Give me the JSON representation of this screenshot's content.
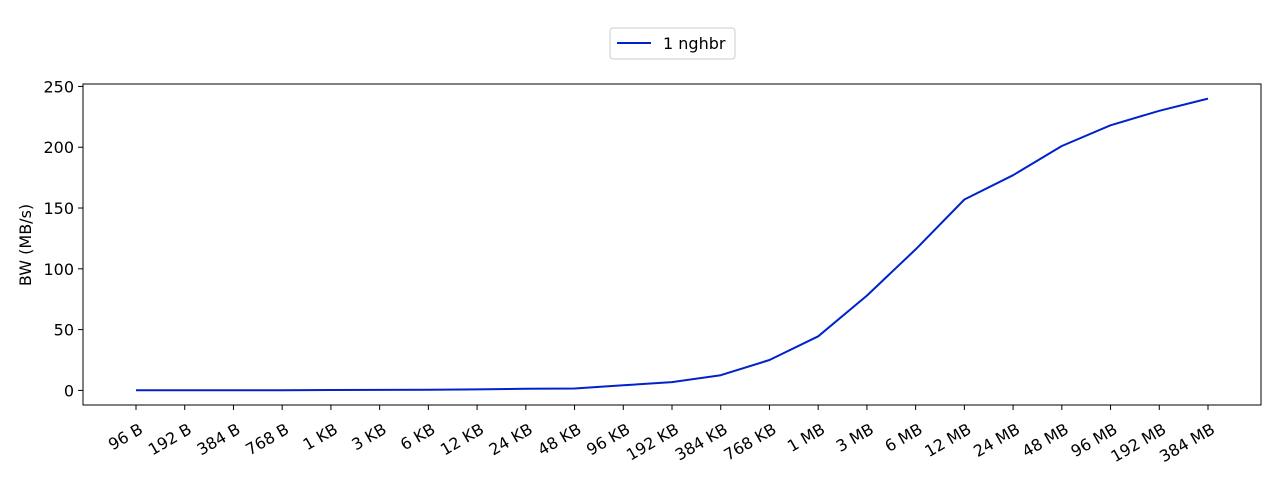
{
  "chart_data": {
    "type": "line",
    "categories": [
      "96 B",
      "192 B",
      "384 B",
      "768 B",
      "1 KB",
      "3 KB",
      "6 KB",
      "12 KB",
      "24 KB",
      "48 KB",
      "96 KB",
      "192 KB",
      "384 KB",
      "768 KB",
      "1 MB",
      "3 MB",
      "6 MB",
      "12 MB",
      "24 MB",
      "48 MB",
      "96 MB",
      "192 MB",
      "384 MB"
    ],
    "series": [
      {
        "name": "1 nghbr",
        "color": "#0022cc",
        "values": [
          0.2,
          0.2,
          0.2,
          0.2,
          0.3,
          0.4,
          0.5,
          0.8,
          1.3,
          1.6,
          4.2,
          6.8,
          12.5,
          25,
          44.5,
          78,
          116,
          157,
          177,
          201,
          218,
          230,
          240
        ]
      }
    ],
    "xlabel": "",
    "ylabel": "BW (MB/s)",
    "ylim": [
      -12,
      252
    ],
    "yticks": [
      0,
      50,
      100,
      150,
      200,
      250
    ],
    "grid": false,
    "legend_position": "top-center"
  }
}
